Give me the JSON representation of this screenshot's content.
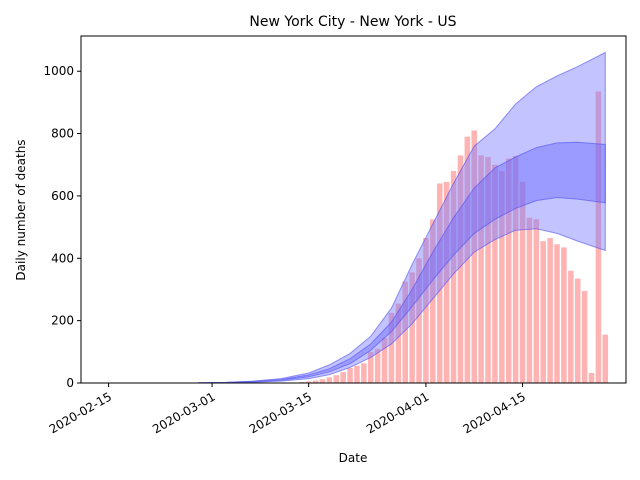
{
  "chart_data": {
    "type": "bar",
    "title": "New York City - New York - US",
    "xlabel": "Date",
    "ylabel": "Daily number of deaths",
    "grid": false,
    "legend": "none",
    "colors": {
      "bars": "#ffb3b3",
      "band_outer": "#7b7bff",
      "band_inner": "#6060ff",
      "band_edge": "#5050ee"
    },
    "xlim": [
      "2020-02-11",
      "2020-04-30"
    ],
    "ylim": [
      0,
      1113
    ],
    "x_ticks": [
      "2020-02-15",
      "2020-03-01",
      "2020-03-15",
      "2020-04-01",
      "2020-04-15"
    ],
    "y_ticks": [
      0,
      200,
      400,
      600,
      800,
      1000
    ],
    "series": [
      {
        "kind": "bar",
        "dates": [
          "2020-03-14",
          "2020-03-15",
          "2020-03-16",
          "2020-03-17",
          "2020-03-18",
          "2020-03-19",
          "2020-03-20",
          "2020-03-21",
          "2020-03-22",
          "2020-03-23",
          "2020-03-24",
          "2020-03-25",
          "2020-03-26",
          "2020-03-27",
          "2020-03-28",
          "2020-03-29",
          "2020-03-30",
          "2020-03-31",
          "2020-04-01",
          "2020-04-02",
          "2020-04-03",
          "2020-04-04",
          "2020-04-05",
          "2020-04-06",
          "2020-04-07",
          "2020-04-08",
          "2020-04-09",
          "2020-04-10",
          "2020-04-11",
          "2020-04-12",
          "2020-04-13",
          "2020-04-14",
          "2020-04-15",
          "2020-04-16",
          "2020-04-17",
          "2020-04-18",
          "2020-04-19",
          "2020-04-20",
          "2020-04-21",
          "2020-04-22",
          "2020-04-23",
          "2020-04-24",
          "2020-04-25",
          "2020-04-26"
        ],
        "values": [
          3,
          5,
          8,
          12,
          18,
          25,
          35,
          48,
          55,
          63,
          100,
          110,
          145,
          225,
          255,
          325,
          355,
          400,
          465,
          525,
          640,
          645,
          680,
          730,
          790,
          810,
          730,
          725,
          700,
          680,
          720,
          728,
          645,
          530,
          525,
          455,
          465,
          445,
          435,
          360,
          335,
          295,
          32,
          935
        ]
      },
      {
        "kind": "bar",
        "dates": [
          "2020-04-27"
        ],
        "values": [
          155
        ]
      },
      {
        "kind": "band",
        "dates": [
          "2020-02-28",
          "2020-03-03",
          "2020-03-07",
          "2020-03-11",
          "2020-03-15",
          "2020-03-18",
          "2020-03-21",
          "2020-03-24",
          "2020-03-27",
          "2020-03-30",
          "2020-04-02",
          "2020-04-05",
          "2020-04-08",
          "2020-04-11",
          "2020-04-14",
          "2020-04-17",
          "2020-04-20",
          "2020-04-23",
          "2020-04-27"
        ],
        "lower": [
          0,
          1,
          3,
          6,
          14,
          27,
          50,
          82,
          125,
          190,
          270,
          350,
          420,
          460,
          490,
          495,
          480,
          455,
          425
        ],
        "upper": [
          1,
          2,
          6,
          14,
          32,
          58,
          95,
          150,
          240,
          380,
          510,
          640,
          760,
          815,
          895,
          950,
          985,
          1015,
          1060
        ]
      },
      {
        "kind": "band",
        "dates": [
          "2020-02-28",
          "2020-03-03",
          "2020-03-07",
          "2020-03-11",
          "2020-03-15",
          "2020-03-18",
          "2020-03-21",
          "2020-03-24",
          "2020-03-27",
          "2020-03-30",
          "2020-04-02",
          "2020-04-05",
          "2020-04-08",
          "2020-04-11",
          "2020-04-14",
          "2020-04-17",
          "2020-04-20",
          "2020-04-23",
          "2020-04-27"
        ],
        "lower": [
          0,
          1,
          4,
          9,
          20,
          36,
          62,
          105,
          165,
          245,
          330,
          410,
          480,
          525,
          560,
          585,
          595,
          590,
          578
        ],
        "upper": [
          1,
          2,
          5,
          11,
          26,
          46,
          78,
          125,
          195,
          300,
          420,
          530,
          625,
          690,
          725,
          755,
          770,
          772,
          765
        ]
      }
    ]
  }
}
